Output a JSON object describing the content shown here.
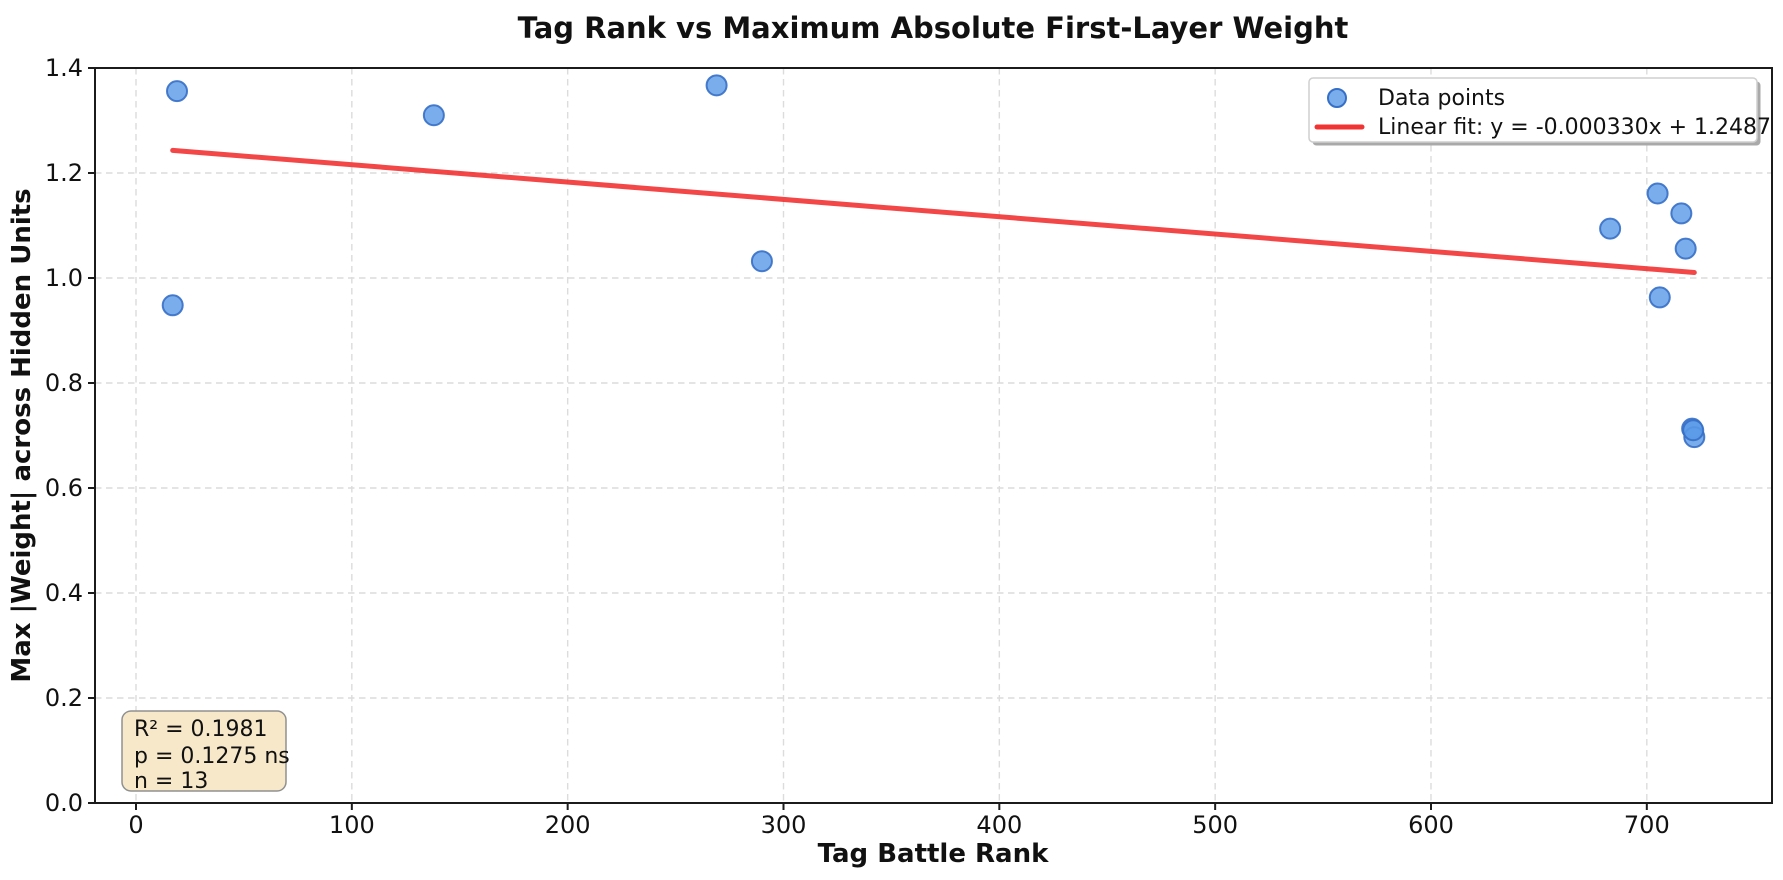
{
  "chart_data": {
    "type": "scatter",
    "title": "Tag Rank vs Maximum Absolute First-Layer Weight",
    "xlabel": "Tag Battle Rank",
    "ylabel": "Max |Weight| across Hidden Units",
    "xlim": [
      -19,
      758
    ],
    "ylim": [
      0.0,
      1.4
    ],
    "x_ticks": [
      0,
      100,
      200,
      300,
      400,
      500,
      600,
      700
    ],
    "y_ticks": [
      0.0,
      0.2,
      0.4,
      0.6,
      0.8,
      1.0,
      1.2,
      1.4
    ],
    "grid": true,
    "grid_style": "dashed",
    "legend_position": "upper right",
    "series": [
      {
        "name": "Data points",
        "type": "scatter",
        "points": [
          [
            19,
            1.356
          ],
          [
            17,
            0.948
          ],
          [
            138,
            1.31
          ],
          [
            269,
            1.367
          ],
          [
            290,
            1.032
          ],
          [
            683,
            1.094
          ],
          [
            705,
            1.161
          ],
          [
            716,
            1.123
          ],
          [
            718,
            1.056
          ],
          [
            706,
            0.963
          ],
          [
            721,
            0.713
          ],
          [
            722,
            0.697
          ],
          [
            721.5,
            0.71
          ]
        ]
      },
      {
        "name": "Linear fit: y = -0.000330x + 1.2487",
        "type": "line",
        "slope": -0.00033,
        "intercept": 1.2487,
        "x_range": [
          17,
          722
        ]
      }
    ],
    "annotation": {
      "lines": [
        "R² = 0.1981",
        "p = 0.1275 ns",
        "n = 13"
      ]
    },
    "colors": {
      "point_fill": "#5b9be8",
      "point_edge": "#366fc7",
      "fit_line": "#f23333",
      "annotation_bg": "#f7e8ca",
      "annotation_border": "#909090",
      "grid": "#dcdcdc",
      "spine": "#1b1b1b",
      "legend_border": "#cfcfcf",
      "legend_shadow": "#a9a9a9",
      "background": "#ffffff"
    }
  }
}
